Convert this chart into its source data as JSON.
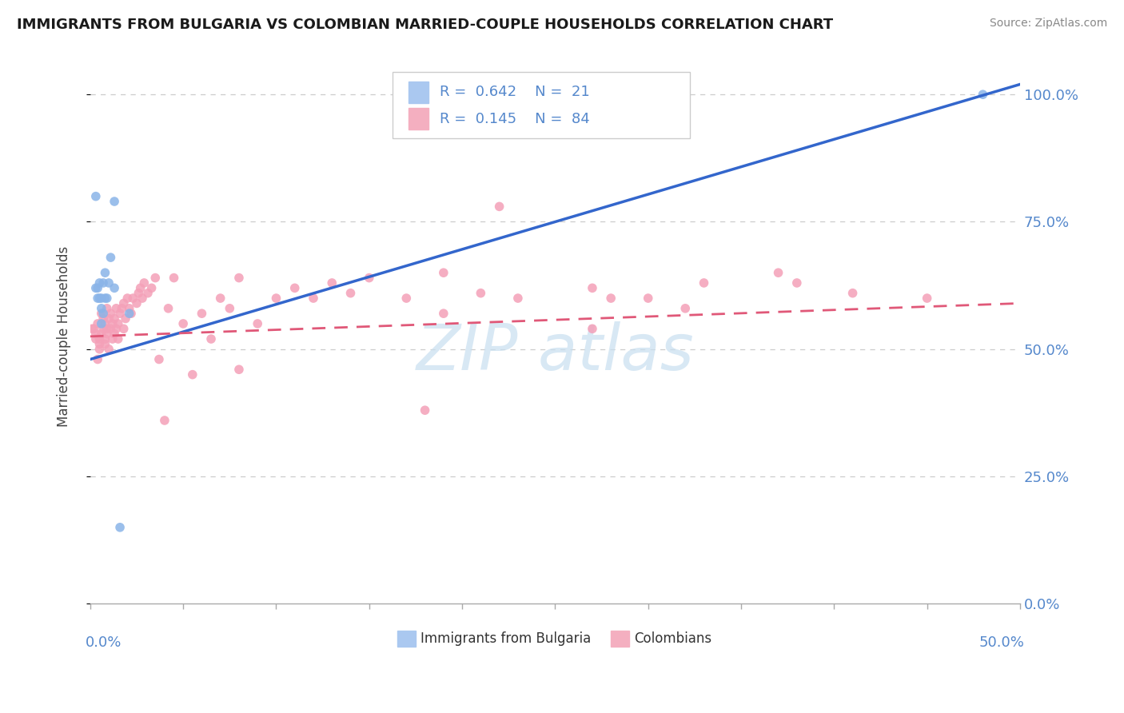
{
  "title": "IMMIGRANTS FROM BULGARIA VS COLOMBIAN MARRIED-COUPLE HOUSEHOLDS CORRELATION CHART",
  "source_text": "Source: ZipAtlas.com",
  "ylabel": "Married-couple Households",
  "R_bulgaria": 0.642,
  "N_bulgaria": 21,
  "R_colombians": 0.145,
  "N_colombians": 84,
  "bulgaria_color": "#8ab4e8",
  "colombia_color": "#f4a0b8",
  "bulgaria_line_color": "#3366cc",
  "colombia_line_color": "#e05878",
  "watermark_color": "#c8dff0",
  "xlim": [
    0.0,
    0.5
  ],
  "ylim": [
    0.0,
    1.05
  ],
  "bg_color": "#ffffff",
  "grid_color": "#cccccc",
  "right_tick_color": "#5588cc",
  "legend_border_color": "#cccccc",
  "legend_blue_color": "#aac8f0",
  "legend_pink_color": "#f4afc0",
  "bottom_label_color": "#5588cc",
  "bulgaria_x": [
    0.003,
    0.003,
    0.004,
    0.004,
    0.005,
    0.005,
    0.006,
    0.006,
    0.006,
    0.007,
    0.007,
    0.008,
    0.008,
    0.009,
    0.01,
    0.011,
    0.013,
    0.016,
    0.021,
    0.48,
    0.013
  ],
  "bulgaria_y": [
    0.8,
    0.62,
    0.6,
    0.62,
    0.63,
    0.6,
    0.6,
    0.58,
    0.55,
    0.57,
    0.63,
    0.6,
    0.65,
    0.6,
    0.63,
    0.68,
    0.79,
    0.15,
    0.57,
    1.0,
    0.62
  ],
  "colombia_x": [
    0.002,
    0.003,
    0.003,
    0.004,
    0.004,
    0.005,
    0.005,
    0.005,
    0.006,
    0.006,
    0.007,
    0.007,
    0.008,
    0.008,
    0.008,
    0.009,
    0.009,
    0.009,
    0.01,
    0.01,
    0.011,
    0.011,
    0.012,
    0.012,
    0.013,
    0.013,
    0.014,
    0.014,
    0.015,
    0.015,
    0.016,
    0.017,
    0.018,
    0.018,
    0.019,
    0.02,
    0.021,
    0.022,
    0.023,
    0.025,
    0.026,
    0.027,
    0.028,
    0.029,
    0.031,
    0.033,
    0.035,
    0.037,
    0.04,
    0.042,
    0.045,
    0.05,
    0.055,
    0.06,
    0.065,
    0.07,
    0.075,
    0.08,
    0.09,
    0.1,
    0.11,
    0.12,
    0.13,
    0.14,
    0.15,
    0.17,
    0.19,
    0.21,
    0.23,
    0.27,
    0.3,
    0.33,
    0.37,
    0.41,
    0.45,
    0.38,
    0.28,
    0.18,
    0.08,
    0.22,
    0.32,
    0.27,
    0.19,
    0.001
  ],
  "colombia_y": [
    0.54,
    0.52,
    0.53,
    0.48,
    0.55,
    0.51,
    0.52,
    0.5,
    0.57,
    0.53,
    0.56,
    0.54,
    0.51,
    0.55,
    0.52,
    0.58,
    0.53,
    0.54,
    0.5,
    0.56,
    0.54,
    0.57,
    0.52,
    0.55,
    0.53,
    0.56,
    0.54,
    0.58,
    0.52,
    0.55,
    0.57,
    0.58,
    0.54,
    0.59,
    0.56,
    0.6,
    0.58,
    0.57,
    0.6,
    0.59,
    0.61,
    0.62,
    0.6,
    0.63,
    0.61,
    0.62,
    0.64,
    0.48,
    0.36,
    0.58,
    0.64,
    0.55,
    0.45,
    0.57,
    0.52,
    0.6,
    0.58,
    0.64,
    0.55,
    0.6,
    0.62,
    0.6,
    0.63,
    0.61,
    0.64,
    0.6,
    0.65,
    0.61,
    0.6,
    0.62,
    0.6,
    0.63,
    0.65,
    0.61,
    0.6,
    0.63,
    0.6,
    0.38,
    0.46,
    0.78,
    0.58,
    0.54,
    0.57,
    0.54
  ],
  "bg_line_y_intercept": 0.48,
  "bg_line_slope": 1.08,
  "co_line_y_intercept": 0.525,
  "co_line_slope": 0.13
}
